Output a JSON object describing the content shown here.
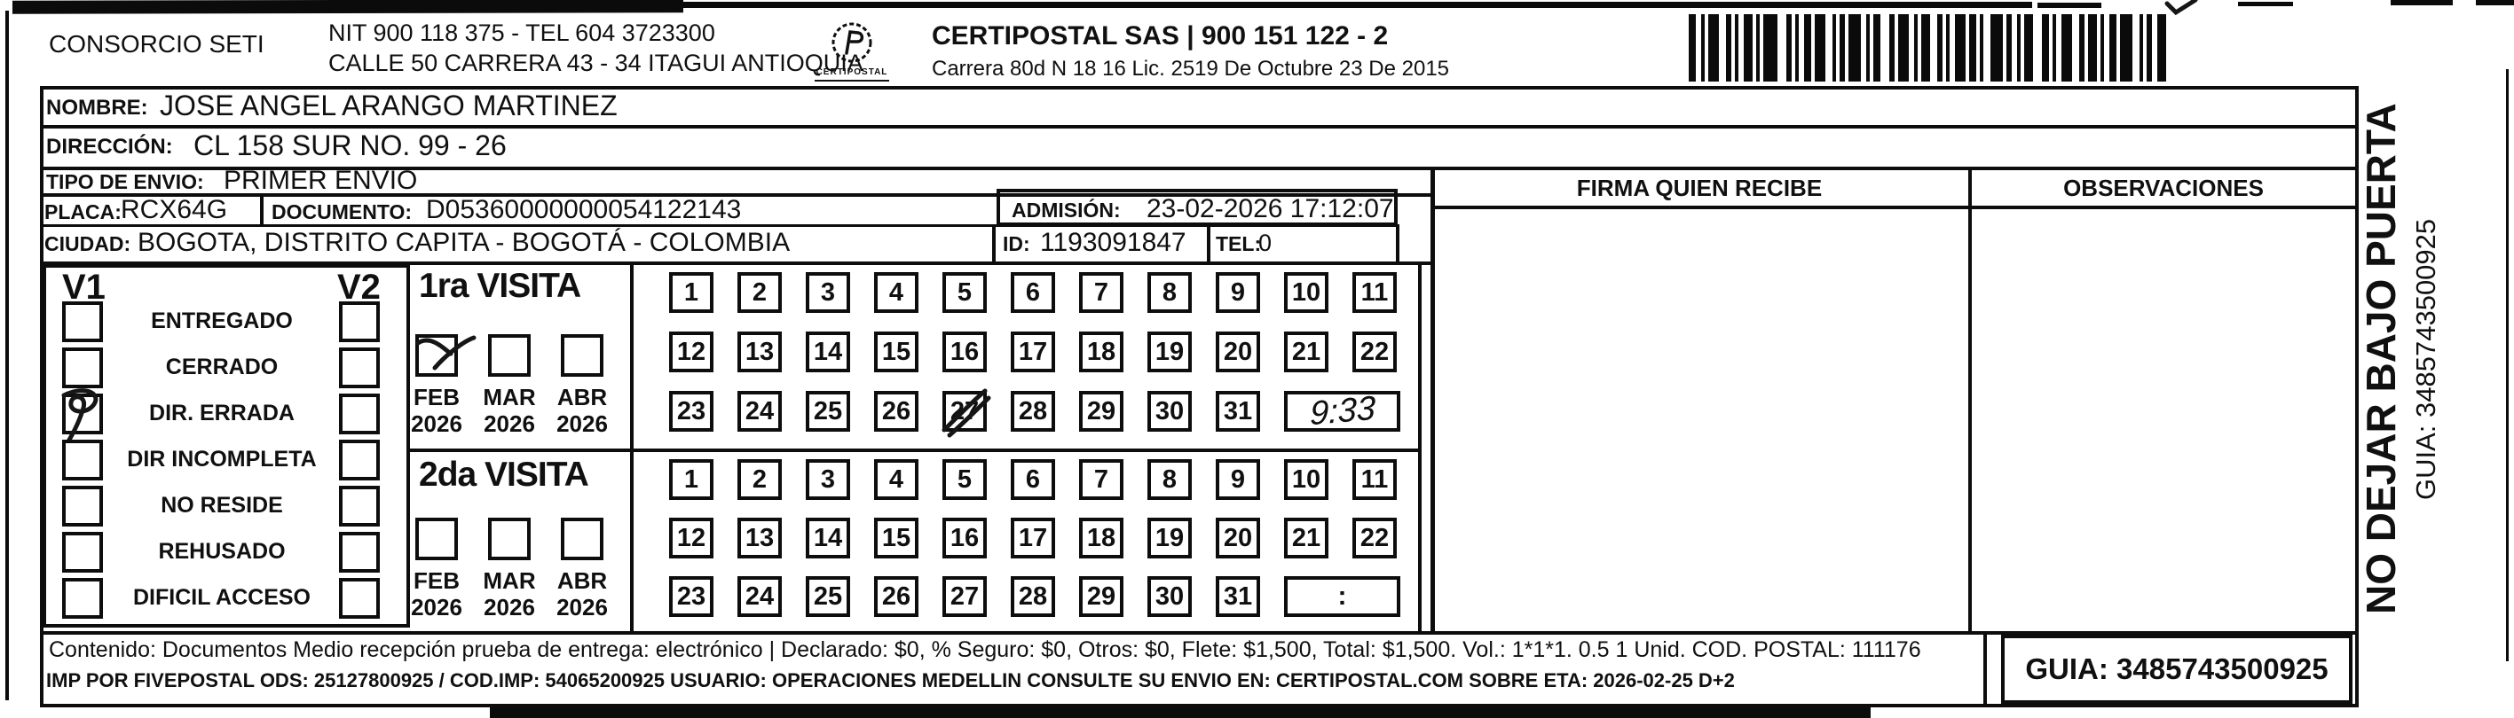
{
  "colors": {
    "ink": "#101010",
    "paper": "#ffffff"
  },
  "header": {
    "consorcio": "CONSORCIO SETI",
    "nit_line": "NIT 900 118 375 - TEL 604 3723300",
    "address_line": "CALLE 50 CARRERA 43 - 34 ITAGUI ANTIOQUIA",
    "logo_text": "CERTIPOSTAL",
    "company_line": "CERTIPOSTAL SAS | 900 151 122 - 2",
    "company_address": "Carrera 80d N 18 16  Lic. 2519 De Octubre 23 De 2015"
  },
  "fields": {
    "nombre_label": "NOMBRE:",
    "nombre": "JOSE ANGEL ARANGO MARTINEZ",
    "direccion_label": "DIRECCIÓN:",
    "direccion": "CL 158 SUR NO. 99 - 26",
    "tipo_envio_label": "TIPO DE ENVIO:",
    "tipo_envio": "PRIMER ENVIO",
    "placa_label": "PLACA:",
    "placa": "RCX64G",
    "documento_label": "DOCUMENTO:",
    "documento": "D05360000000054122143",
    "admision_label": "ADMISIÓN:",
    "admision": "23-02-2026 17:12:07",
    "ciudad_label": "CIUDAD:",
    "ciudad": "BOGOTA, DISTRITO CAPITA - BOGOTÁ - COLOMBIA",
    "id_label": "ID:",
    "id_value": "1193091847",
    "tel_label": "TEL:",
    "tel_value": "0"
  },
  "status": {
    "col1": "V1",
    "col2": "V2",
    "options": [
      "ENTREGADO",
      "CERRADO",
      "DIR. ERRADA",
      "DIR INCOMPLETA",
      "NO RESIDE",
      "REHUSADO",
      "DIFICIL ACCESO"
    ],
    "checked": {
      "column": "V1",
      "option": "DIR. ERRADA",
      "option_index": 2
    }
  },
  "visits": {
    "months": [
      {
        "month": "FEB",
        "year": "2026"
      },
      {
        "month": "MAR",
        "year": "2026"
      },
      {
        "month": "ABR",
        "year": "2026"
      }
    ],
    "day_rows": [
      [
        "1",
        "2",
        "3",
        "4",
        "5",
        "6",
        "7",
        "8",
        "9",
        "10",
        "11"
      ],
      [
        "12",
        "13",
        "14",
        "15",
        "16",
        "17",
        "18",
        "19",
        "20",
        "21",
        "22"
      ],
      [
        "23",
        "24",
        "25",
        "26",
        "27",
        "28",
        "29",
        "30",
        "31"
      ]
    ],
    "first": {
      "title": "1ra VISITA",
      "checked_month": "FEB 2026",
      "checked_month_index": 0,
      "struck_day": "27",
      "handwritten_time": "9:33"
    },
    "second": {
      "title": "2da VISITA",
      "time_placeholder": ":"
    }
  },
  "columns": {
    "firma": "FIRMA QUIEN RECIBE",
    "observaciones": "OBSERVACIONES"
  },
  "side_text": {
    "warning": "NO DEJAR BAJO PUERTA",
    "guia": "GUIA: 3485743500925"
  },
  "footer": {
    "line1": "Contenido: Documentos Medio recepción prueba de entrega: electrónico | Declarado: $0, % Seguro: $0, Otros: $0, Flete: $1,500, Total: $1,500. Vol.: 1*1*1. 0.5  1 Unid. COD. POSTAL: 111176",
    "line2": "IMP POR FIVEPOSTAL ODS: 25127800925 / COD.IMP: 54065200925 USUARIO: OPERACIONES MEDELLIN CONSULTE SU ENVIO EN: CERTIPOSTAL.COM SOBRE ETA: 2026-02-25 D+2",
    "guia_box": "GUIA: 3485743500925"
  }
}
